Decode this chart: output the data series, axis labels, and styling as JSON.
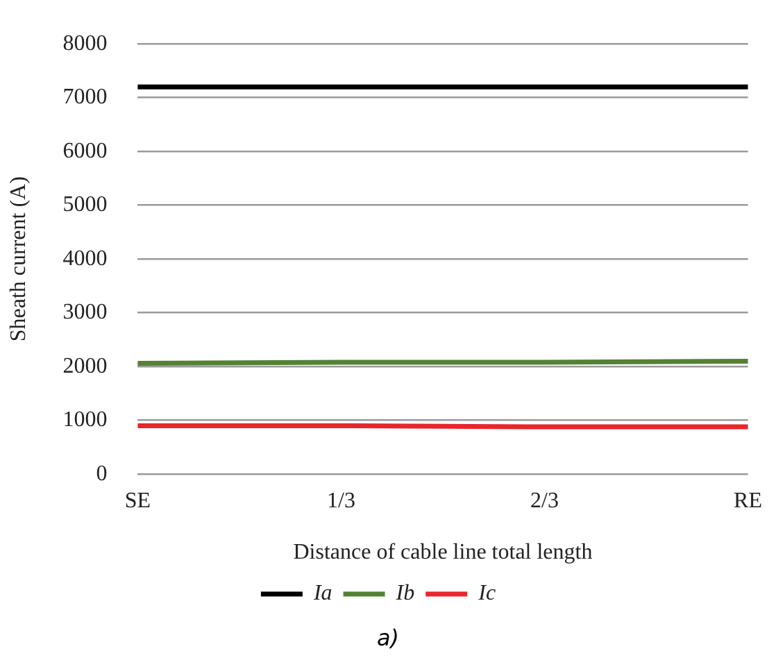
{
  "chart_data": {
    "type": "line",
    "xlabel": "Distance of cable line total length",
    "ylabel": "Sheath current (A)",
    "categories": [
      "SE",
      "1/3",
      "2/3",
      "RE"
    ],
    "series": [
      {
        "name": "Ia",
        "color": "#000000",
        "values": [
          7200,
          7200,
          7200,
          7200
        ]
      },
      {
        "name": "Ib",
        "color": "#548235",
        "values": [
          2060,
          2080,
          2080,
          2100
        ]
      },
      {
        "name": "Ic",
        "color": "#e8262b",
        "values": [
          900,
          900,
          880,
          880
        ]
      }
    ],
    "ylim": [
      0,
      8000
    ],
    "yticks": [
      0,
      1000,
      2000,
      3000,
      4000,
      5000,
      6000,
      7000,
      8000
    ],
    "grid": "y",
    "legend": "bottom",
    "marker": "none",
    "line_style": "solid",
    "annotations": [
      "a)"
    ]
  }
}
